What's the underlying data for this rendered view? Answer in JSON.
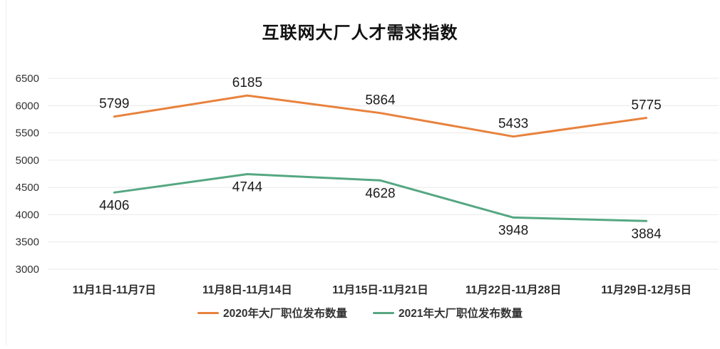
{
  "chart_data": {
    "type": "line",
    "title": "互联网大厂人才需求指数",
    "categories": [
      "11月1日-11月7日",
      "11月8日-11月14日",
      "11月15日-11月21日",
      "11月22日-11月28日",
      "11月29日-12月5日"
    ],
    "series": [
      {
        "name": "2020年大厂职位发布数量",
        "color": "#E8823D",
        "values": [
          5799,
          6185,
          5864,
          5433,
          5775
        ],
        "label_position": "above"
      },
      {
        "name": "2021年大厂职位发布数量",
        "color": "#55A782",
        "values": [
          4406,
          4744,
          4628,
          3948,
          3884
        ],
        "label_position": "below"
      }
    ],
    "ylim": [
      3000,
      6500
    ],
    "yticks": [
      3000,
      3500,
      4000,
      4500,
      5000,
      5500,
      6000,
      6500
    ],
    "xlabel": "",
    "ylabel": "",
    "grid": true,
    "legend_position": "bottom",
    "colors": {
      "gridline": "#e9e9e9",
      "axis_text": "#333333",
      "data_label": "#1c1c1c",
      "title_text": "#111111",
      "background": "#ffffff"
    }
  }
}
